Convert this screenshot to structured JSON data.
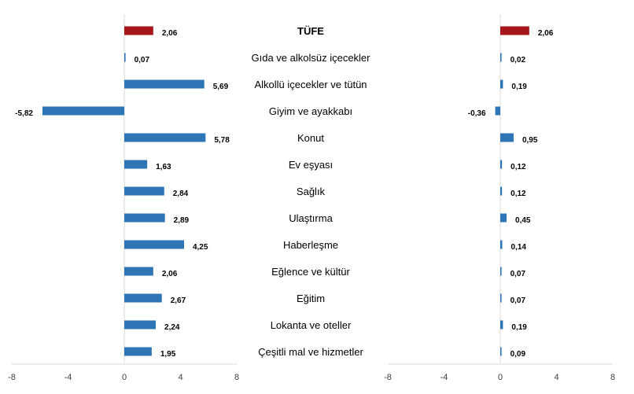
{
  "categories": [
    "TÜFE",
    "Gıda ve alkolsüz içecekler",
    "Alkollü içecekler ve tütün",
    "Giyim ve ayakkabı",
    "Konut",
    "Ev eşyası",
    "Sağlık",
    "Ulaştırma",
    "Haberleşme",
    "Eğlence ve kültür",
    "Eğitim",
    "Lokanta ve oteller",
    "Çeşitli mal ve hizmetler"
  ],
  "colors": {
    "highlight": "#a6161b",
    "bar": "#2e75b6",
    "axis": "#d9d9d9",
    "text": "#000000"
  },
  "chart_data": [
    {
      "type": "bar",
      "orientation": "horizontal",
      "title": "",
      "xlabel": "",
      "ylabel": "",
      "xlim": [
        -8,
        8
      ],
      "ticks": [
        "-8",
        "-4",
        "0",
        "4",
        "8"
      ],
      "tick_values": [
        -8,
        -4,
        0,
        4,
        8
      ],
      "grid": false,
      "values": [
        2.06,
        0.07,
        5.69,
        -5.82,
        5.78,
        1.63,
        2.84,
        2.89,
        4.25,
        2.06,
        2.67,
        2.24,
        1.95
      ],
      "labels": [
        "2,06",
        "0,07",
        "5,69",
        "-5,82",
        "5,78",
        "1,63",
        "2,84",
        "2,89",
        "4,25",
        "2,06",
        "2,67",
        "2,24",
        "1,95"
      ]
    },
    {
      "type": "bar",
      "orientation": "horizontal",
      "title": "",
      "xlabel": "",
      "ylabel": "",
      "xlim": [
        -8,
        8
      ],
      "ticks": [
        "-8",
        "-4",
        "0",
        "4",
        "8"
      ],
      "tick_values": [
        -8,
        -4,
        0,
        4,
        8
      ],
      "grid": false,
      "values": [
        2.06,
        0.02,
        0.19,
        -0.36,
        0.95,
        0.12,
        0.12,
        0.45,
        0.14,
        0.07,
        0.07,
        0.19,
        0.09
      ],
      "labels": [
        "2,06",
        "0,02",
        "0,19",
        "-0,36",
        "0,95",
        "0,12",
        "0,12",
        "0,45",
        "0,14",
        "0,07",
        "0,07",
        "0,19",
        "0,09"
      ]
    }
  ]
}
